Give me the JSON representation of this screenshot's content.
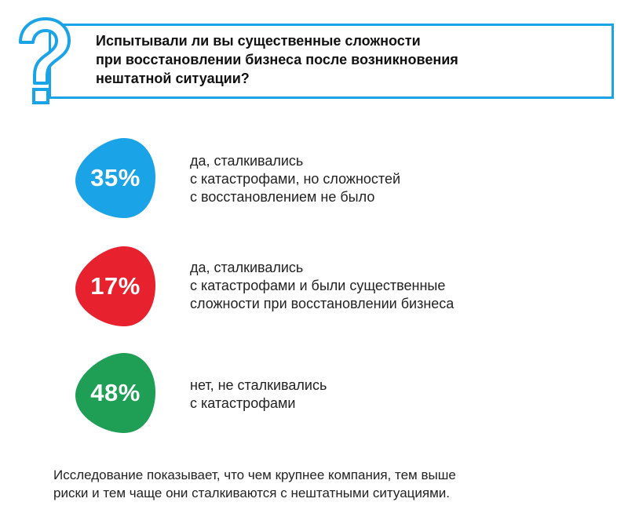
{
  "question": {
    "text": "Испытывали ли вы существенные сложности\nпри восстановлении бизнеса после возникновения\nнештатной ситуации?",
    "icon": "question-mark-icon",
    "accent_color": "#1ba3e8"
  },
  "answers": [
    {
      "percent_label": "35%",
      "text": "да, сталкивались\nс катастрофами, но сложностей\nс восстановлением не было",
      "color": "#1ba3e8"
    },
    {
      "percent_label": "17%",
      "text": "да, сталкивались\nс катастрофами и были существенные\nсложности при восстановлении бизнеса",
      "color": "#e8212e"
    },
    {
      "percent_label": "48%",
      "text": "нет, не сталкивались\nс катастрофами",
      "color": "#1f9e55"
    }
  ],
  "footer": {
    "text": "Исследование показывает, что чем крупнее компания, тем выше\nриски и тем чаще они сталкиваются с нештатными ситуациями."
  },
  "chart_data": {
    "type": "table",
    "categories": [
      "да, сталкивались с катастрофами, но сложностей с восстановлением не было",
      "да, сталкивались с катастрофами и были существенные сложности при восстановлении бизнеса",
      "нет, не сталкивались с катастрофами"
    ],
    "values": [
      35,
      17,
      48
    ],
    "title": "Испытывали ли вы существенные сложности при восстановлении бизнеса после возникновения нештатной ситуации?",
    "colors": [
      "#1ba3e8",
      "#e8212e",
      "#1f9e55"
    ]
  }
}
